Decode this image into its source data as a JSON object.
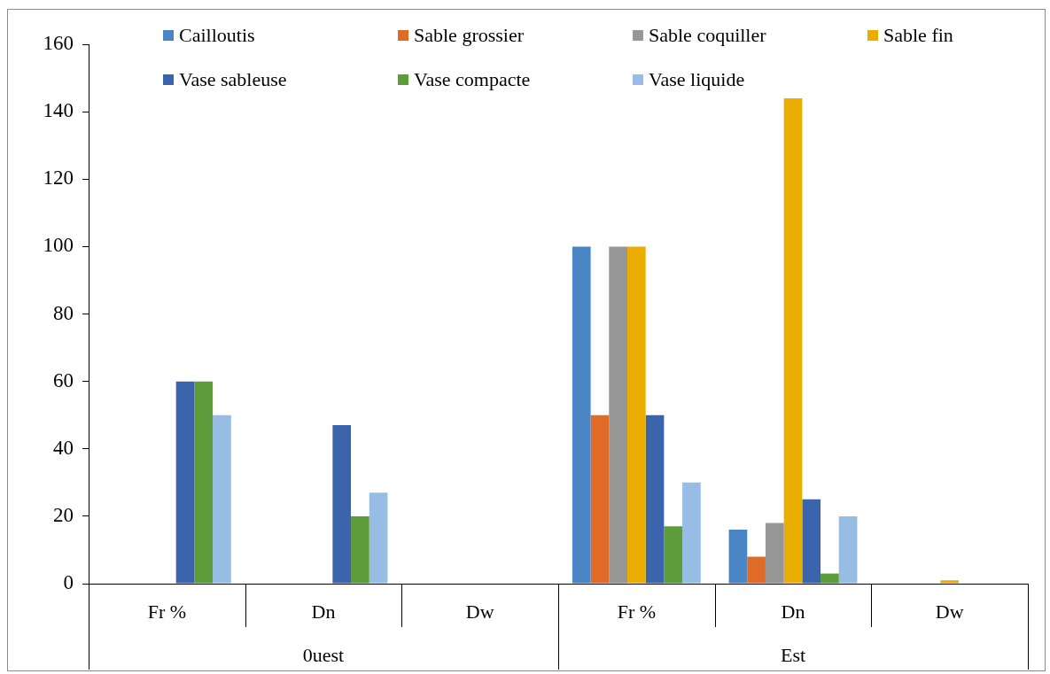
{
  "chart_data": {
    "type": "bar",
    "categories": [
      "Fr %",
      "Dn",
      "Dw",
      "Fr %",
      "Dn",
      "Dw"
    ],
    "annotations": [
      "0uest",
      "Est"
    ],
    "series": [
      {
        "name": "Cailloutis",
        "color": "#4a86c5",
        "values": [
          0,
          0,
          0,
          100,
          16,
          0
        ]
      },
      {
        "name": "Sable grossier",
        "color": "#e06b27",
        "values": [
          0,
          0,
          0,
          50,
          8,
          0
        ]
      },
      {
        "name": "Sable coquiller",
        "color": "#969696",
        "values": [
          0,
          0,
          0,
          100,
          18,
          0
        ]
      },
      {
        "name": "Sable fin",
        "color": "#eaae00",
        "values": [
          0,
          0,
          0,
          100,
          144,
          1
        ]
      },
      {
        "name": "Vase sableuse",
        "color": "#3b64ad",
        "values": [
          60,
          47,
          0,
          50,
          25,
          0
        ]
      },
      {
        "name": "Vase compacte",
        "color": "#5e9b3b",
        "values": [
          60,
          20,
          0,
          17,
          3,
          0
        ]
      },
      {
        "name": "Vase liquide",
        "color": "#98bde4",
        "values": [
          50,
          27,
          0,
          30,
          20,
          0
        ]
      }
    ],
    "ylim": [
      0,
      160
    ],
    "yticks": [
      0,
      20,
      40,
      60,
      80,
      100,
      120,
      140,
      160
    ],
    "grid": false,
    "legend": "top"
  }
}
